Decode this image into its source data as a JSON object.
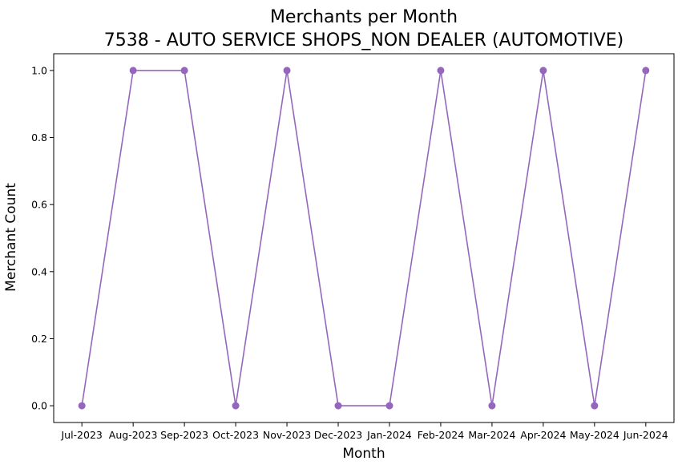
{
  "chart_data": {
    "type": "line",
    "title": "Merchants per Month",
    "subtitle": "7538 - AUTO SERVICE SHOPS_NON DEALER (AUTOMOTIVE)",
    "xlabel": "Month",
    "ylabel": "Merchant Count",
    "categories": [
      "Jul-2023",
      "Aug-2023",
      "Sep-2023",
      "Oct-2023",
      "Nov-2023",
      "Dec-2023",
      "Jan-2024",
      "Feb-2024",
      "Mar-2024",
      "Apr-2024",
      "May-2024",
      "Jun-2024"
    ],
    "series": [
      {
        "values": [
          0,
          1,
          1,
          0,
          1,
          0,
          0,
          1,
          0,
          1,
          0,
          1
        ],
        "color": "#9467bd",
        "marker": "circle"
      }
    ],
    "ylim": [
      -0.05,
      1.05
    ],
    "yticks": [
      0.0,
      0.2,
      0.4,
      0.6,
      0.8,
      1.0
    ],
    "ytick_labels": [
      "0.0",
      "0.2",
      "0.4",
      "0.6",
      "0.8",
      "1.0"
    ],
    "grid": false,
    "legend": "none"
  }
}
